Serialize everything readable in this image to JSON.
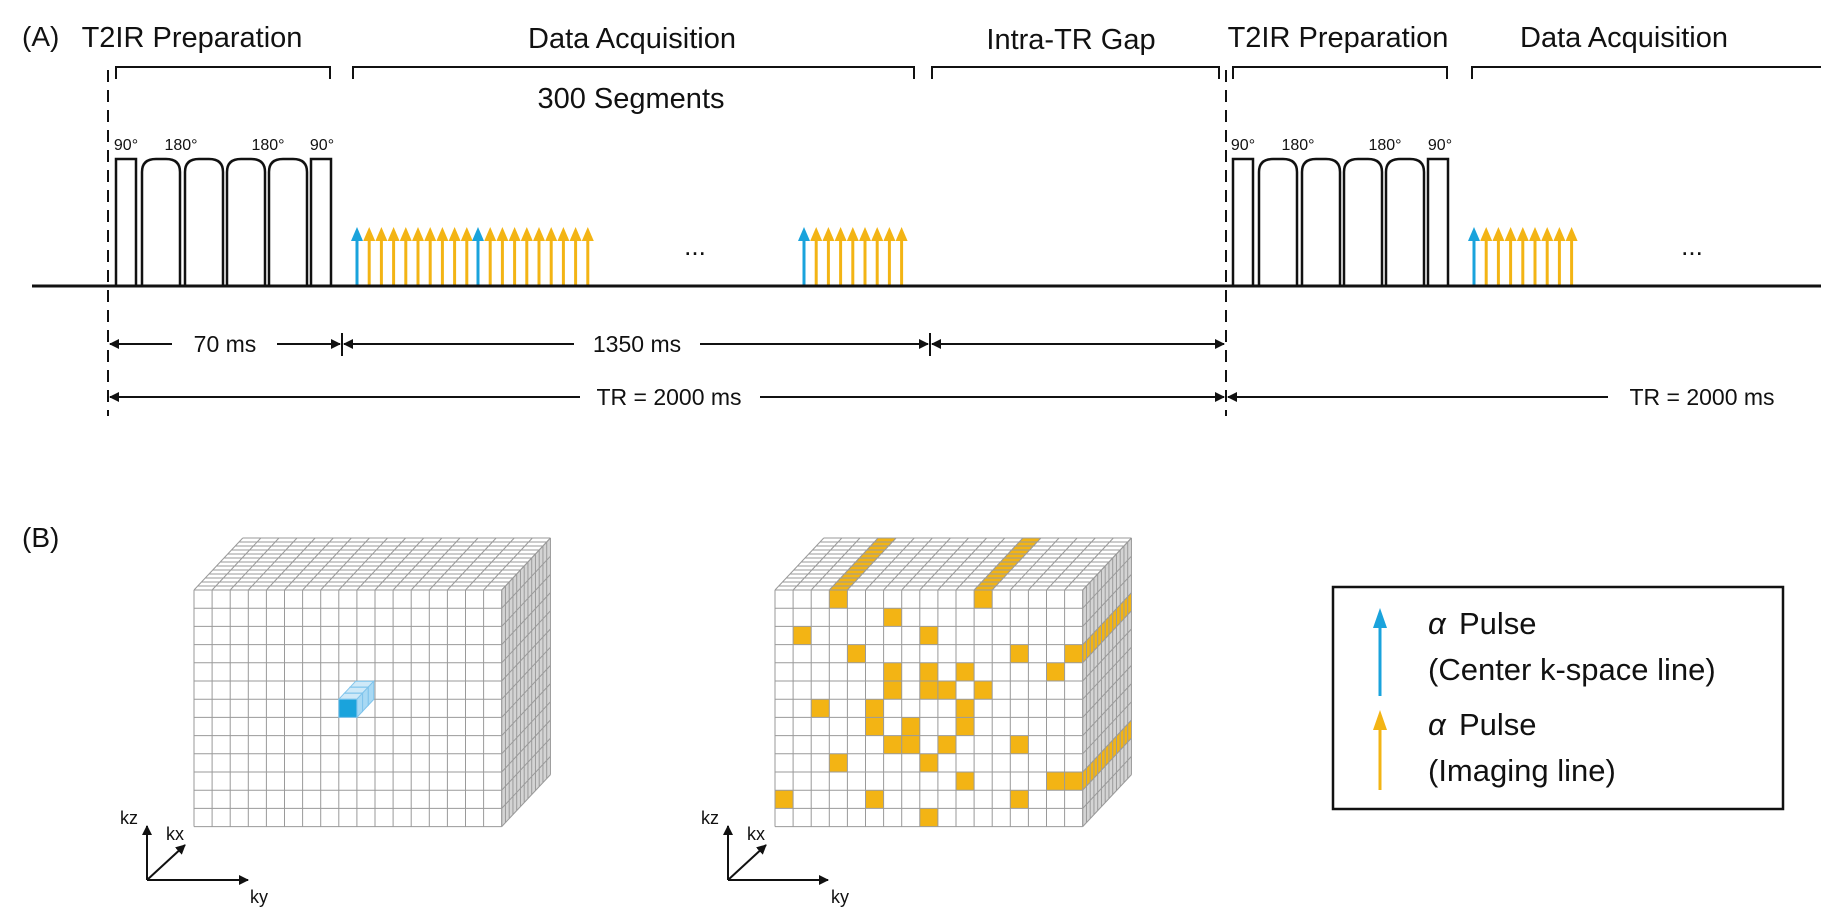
{
  "colors": {
    "center_pulse": "#1aa3dc",
    "imaging_pulse": "#f3b414",
    "grid_line": "#9a9a9a",
    "grid_side": "#d4d4d4",
    "axis": "#111111"
  },
  "panel_a": {
    "label": "(A)",
    "phases": [
      {
        "id": "t2ir-1",
        "label": "T2IR Preparation"
      },
      {
        "id": "acq-1",
        "label": "Data Acquisition"
      },
      {
        "id": "gap",
        "label": "Intra-TR Gap"
      },
      {
        "id": "t2ir-2",
        "label": "T2IR Preparation"
      },
      {
        "id": "acq-2",
        "label": "Data Acquisition"
      }
    ],
    "segments_label": "300 Segments",
    "flip_angles": [
      "90°",
      "180°",
      "180°",
      "90°"
    ],
    "ellipsis": "...",
    "durations": {
      "prep": "70 ms",
      "acquisition": "1350 ms",
      "tr": "TR = 2000 ms"
    },
    "pulse_groups": [
      {
        "id": "group-1",
        "count": 10,
        "center_at": 0
      },
      {
        "id": "group-2",
        "count": 10,
        "center_at": 0
      },
      {
        "id": "group-3",
        "count": 9,
        "center_at": 0
      },
      {
        "id": "group-4",
        "count": 9,
        "center_at": 0
      }
    ]
  },
  "panel_b": {
    "label": "(B)",
    "axes": {
      "kz": "kz",
      "kx": "kx",
      "ky": "ky"
    },
    "grid": {
      "cols": 17,
      "rows": 13,
      "depth": 13
    },
    "cube_left": {
      "highlight": {
        "col": 8,
        "row": 6,
        "depth": 3
      }
    },
    "cube_right": {
      "front_cells": [
        [
          6,
          1
        ],
        [
          1,
          2
        ],
        [
          8,
          2
        ],
        [
          4,
          3
        ],
        [
          13,
          3
        ],
        [
          15,
          4
        ],
        [
          6,
          4
        ],
        [
          8,
          4
        ],
        [
          10,
          4
        ],
        [
          6,
          5
        ],
        [
          8,
          5
        ],
        [
          9,
          5
        ],
        [
          11,
          5
        ],
        [
          2,
          6
        ],
        [
          5,
          6
        ],
        [
          10,
          6
        ],
        [
          5,
          7
        ],
        [
          7,
          7
        ],
        [
          10,
          7
        ],
        [
          6,
          8
        ],
        [
          7,
          8
        ],
        [
          9,
          8
        ],
        [
          13,
          8
        ],
        [
          3,
          9
        ],
        [
          8,
          9
        ],
        [
          10,
          10
        ],
        [
          15,
          10
        ],
        [
          0,
          11
        ],
        [
          5,
          11
        ],
        [
          13,
          11
        ],
        [
          8,
          12
        ]
      ],
      "top_stripes": [
        {
          "col": 3
        },
        {
          "col": 11
        }
      ],
      "side_stripes": [
        {
          "row": 3
        },
        {
          "row": 10
        }
      ]
    }
  },
  "legend": {
    "items": [
      {
        "symbol": "α",
        "label": "Pulse",
        "sublabel": "(Center k-space line)",
        "color_key": "center_pulse"
      },
      {
        "symbol": "α",
        "label": "Pulse",
        "sublabel": "(Imaging line)",
        "color_key": "imaging_pulse"
      }
    ]
  }
}
